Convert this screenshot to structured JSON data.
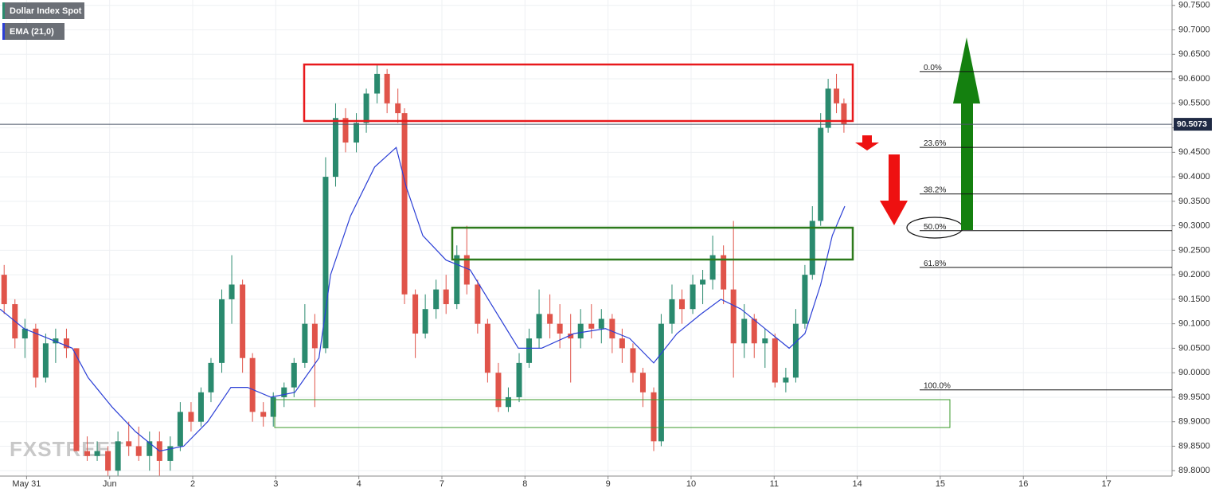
{
  "chart_data": {
    "type": "candlestick",
    "title": "Dollar Index Spot",
    "watermark": "FXSTREET",
    "up_color": "#2a8a6e",
    "down_color": "#e0544a",
    "x": [
      -0.27,
      -0.14,
      -0.02,
      0.11,
      0.23,
      0.35,
      0.48,
      0.6,
      0.73,
      0.85,
      0.98,
      1.1,
      1.23,
      1.35,
      1.48,
      1.6,
      1.73,
      1.85,
      1.98,
      2.1,
      2.22,
      2.35,
      2.47,
      2.6,
      2.72,
      2.85,
      2.97,
      3.1,
      3.22,
      3.35,
      3.47,
      3.6,
      3.72,
      3.84,
      3.97,
      4.09,
      4.22,
      4.34,
      4.47,
      4.55,
      4.68,
      4.8,
      4.93,
      5.05,
      5.18,
      5.3,
      5.43,
      5.55,
      5.68,
      5.8,
      5.93,
      6.05,
      6.17,
      6.3,
      6.42,
      6.55,
      6.67,
      6.8,
      6.92,
      7.05,
      7.17,
      7.3,
      7.42,
      7.55,
      7.64,
      7.77,
      7.89,
      8.02,
      8.14,
      8.26,
      8.39,
      8.51,
      8.64,
      8.76,
      8.89,
      9.01,
      9.14,
      9.26,
      9.37,
      9.46,
      9.56,
      9.65,
      9.75,
      9.84
    ],
    "open": [
      90.2,
      90.14,
      90.07,
      90.09,
      89.99,
      90.06,
      90.07,
      90.05,
      89.84,
      89.83,
      89.84,
      89.8,
      89.86,
      89.85,
      89.83,
      89.86,
      89.82,
      89.85,
      89.92,
      89.9,
      89.96,
      90.02,
      90.15,
      90.18,
      90.03,
      89.92,
      89.91,
      89.95,
      89.97,
      90.02,
      90.1,
      90.05,
      90.4,
      90.52,
      90.47,
      90.51,
      90.57,
      90.61,
      90.55,
      90.53,
      90.16,
      90.08,
      90.13,
      90.17,
      90.14,
      90.24,
      90.18,
      90.1,
      90.0,
      89.93,
      89.95,
      90.02,
      90.07,
      90.12,
      90.1,
      90.08,
      90.07,
      90.1,
      90.09,
      90.11,
      90.07,
      90.05,
      90.0,
      89.96,
      89.86,
      90.1,
      90.15,
      90.13,
      90.18,
      90.19,
      90.24,
      90.17,
      90.06,
      90.11,
      90.06,
      90.07,
      89.98,
      89.99,
      90.1,
      90.2,
      90.31,
      90.5,
      90.58,
      90.55
    ],
    "high": [
      90.22,
      90.15,
      90.11,
      90.1,
      90.08,
      90.09,
      90.09,
      90.05,
      89.87,
      89.86,
      89.85,
      89.88,
      89.9,
      89.89,
      89.88,
      89.88,
      89.87,
      89.94,
      89.94,
      89.97,
      90.03,
      90.17,
      90.24,
      90.19,
      90.04,
      89.94,
      89.96,
      89.98,
      90.03,
      90.14,
      90.12,
      90.44,
      90.55,
      90.54,
      90.53,
      90.58,
      90.63,
      90.62,
      90.58,
      90.54,
      90.17,
      90.16,
      90.19,
      90.2,
      90.26,
      90.3,
      90.19,
      90.11,
      90.02,
      89.97,
      90.04,
      90.09,
      90.17,
      90.16,
      90.14,
      90.12,
      90.13,
      90.14,
      90.13,
      90.12,
      90.09,
      90.06,
      90.01,
      89.97,
      90.12,
      90.18,
      90.17,
      90.2,
      90.21,
      90.28,
      90.26,
      90.31,
      90.14,
      90.12,
      90.09,
      90.08,
      90.01,
      90.13,
      90.22,
      90.34,
      90.53,
      90.6,
      90.61,
      90.56
    ],
    "low": [
      90.12,
      90.05,
      90.03,
      89.97,
      89.98,
      90.02,
      90.03,
      89.84,
      89.82,
      89.82,
      89.79,
      89.79,
      89.83,
      89.82,
      89.8,
      89.79,
      89.8,
      89.84,
      89.88,
      89.89,
      89.94,
      90.0,
      90.1,
      90.0,
      89.9,
      89.89,
      89.89,
      89.93,
      89.95,
      90.01,
      89.93,
      90.04,
      90.38,
      90.45,
      90.45,
      90.49,
      90.55,
      90.53,
      90.51,
      90.14,
      90.03,
      90.07,
      90.11,
      90.12,
      90.13,
      90.16,
      90.08,
      89.98,
      89.92,
      89.92,
      89.94,
      90.01,
      90.05,
      90.07,
      90.05,
      89.98,
      90.05,
      90.07,
      90.06,
      90.04,
      90.02,
      89.98,
      89.93,
      89.84,
      89.85,
      90.08,
      90.1,
      90.12,
      90.14,
      90.17,
      90.14,
      89.99,
      90.03,
      90.03,
      90.01,
      89.97,
      89.96,
      89.98,
      90.09,
      90.19,
      90.3,
      90.49,
      90.53,
      90.49
    ],
    "close": [
      90.14,
      90.07,
      90.09,
      89.99,
      90.06,
      90.07,
      90.05,
      89.84,
      89.83,
      89.84,
      89.8,
      89.86,
      89.85,
      89.83,
      89.86,
      89.82,
      89.85,
      89.92,
      89.9,
      89.96,
      90.02,
      90.15,
      90.18,
      90.03,
      89.92,
      89.91,
      89.95,
      89.97,
      90.02,
      90.1,
      90.05,
      90.4,
      90.52,
      90.47,
      90.51,
      90.57,
      90.61,
      90.55,
      90.53,
      90.16,
      90.08,
      90.13,
      90.17,
      90.14,
      90.24,
      90.18,
      90.1,
      90.0,
      89.93,
      89.95,
      90.02,
      90.07,
      90.12,
      90.1,
      90.08,
      90.07,
      90.1,
      90.09,
      90.11,
      90.07,
      90.05,
      90.0,
      89.96,
      89.86,
      90.1,
      90.15,
      90.13,
      90.18,
      90.19,
      90.24,
      90.17,
      90.06,
      90.11,
      90.06,
      90.07,
      89.98,
      89.99,
      90.1,
      90.2,
      90.31,
      90.5,
      90.58,
      90.55,
      90.507
    ],
    "series": [
      {
        "name": "EMA (21,0)",
        "color": "#2b3fd6",
        "x": [
          -0.32,
          -0.03,
          0.26,
          0.55,
          0.74,
          1.03,
          1.31,
          1.6,
          1.89,
          2.18,
          2.46,
          2.66,
          2.94,
          3.23,
          3.52,
          3.66,
          3.9,
          4.19,
          4.45,
          4.57,
          4.77,
          5.05,
          5.34,
          5.63,
          5.92,
          6.2,
          6.59,
          6.97,
          7.26,
          7.55,
          7.83,
          8.12,
          8.36,
          8.6,
          8.89,
          9.18,
          9.37,
          9.56,
          9.7,
          9.85
        ],
        "values": [
          90.13,
          90.09,
          90.07,
          90.05,
          89.99,
          89.93,
          89.88,
          89.84,
          89.85,
          89.9,
          89.97,
          89.97,
          89.95,
          89.96,
          90.03,
          90.2,
          90.32,
          90.42,
          90.46,
          90.38,
          90.28,
          90.23,
          90.21,
          90.13,
          90.05,
          90.05,
          90.08,
          90.09,
          90.07,
          90.02,
          90.08,
          90.12,
          90.15,
          90.13,
          90.09,
          90.05,
          90.08,
          90.18,
          90.28,
          90.34
        ]
      }
    ],
    "last_price": 90.5073,
    "fib_levels": [
      {
        "label": "0.0%",
        "price": 90.615
      },
      {
        "label": "23.6%",
        "price": 90.46
      },
      {
        "label": "38.2%",
        "price": 90.365
      },
      {
        "label": "50.0%",
        "price": 90.29
      },
      {
        "label": "61.8%",
        "price": 90.215
      },
      {
        "label": "100.0%",
        "price": 89.965
      }
    ],
    "xlim": [
      -0.32,
      13.79
    ],
    "xticks": [
      {
        "value": 0,
        "label": "May 31"
      },
      {
        "value": 1,
        "label": "Jun"
      },
      2,
      3,
      4,
      {
        "value": 5,
        "label": "7"
      },
      {
        "value": 6,
        "label": "8"
      },
      {
        "value": 7,
        "label": "9"
      },
      {
        "value": 8,
        "label": "10"
      },
      {
        "value": 9,
        "label": "11"
      },
      {
        "value": 10,
        "label": "14"
      },
      {
        "value": 11,
        "label": "15"
      },
      {
        "value": 12,
        "label": "16"
      },
      {
        "value": 13,
        "label": "17"
      }
    ],
    "ylim": [
      89.789,
      90.761
    ],
    "yticks": [
      {
        "value": 89.8,
        "label": "89.8000"
      },
      {
        "value": 89.85,
        "label": "89.8500"
      },
      {
        "value": 89.9,
        "label": "89.9000"
      },
      {
        "value": 89.95,
        "label": "89.9500"
      },
      {
        "value": 90.0,
        "label": "90.0000"
      },
      {
        "value": 90.05,
        "label": "90.0500"
      },
      {
        "value": 90.1,
        "label": "90.1000"
      },
      {
        "value": 90.15,
        "label": "90.1500"
      },
      {
        "value": 90.2,
        "label": "90.2000"
      },
      {
        "value": 90.25,
        "label": "90.2500"
      },
      {
        "value": 90.3,
        "label": "90.3000"
      },
      {
        "value": 90.35,
        "label": "90.3500"
      },
      {
        "value": 90.4,
        "label": "90.4000"
      },
      {
        "value": 90.45,
        "label": "90.4500"
      },
      {
        "value": 90.5,
        "label": "90.5000"
      },
      {
        "value": 90.55,
        "label": "90.5500"
      },
      {
        "value": 90.6,
        "label": "90.6000"
      },
      {
        "value": 90.65,
        "label": "90.6500"
      },
      {
        "value": 90.7,
        "label": "90.7000"
      },
      {
        "value": 90.75,
        "label": "90.7500"
      }
    ],
    "grid": true
  }
}
